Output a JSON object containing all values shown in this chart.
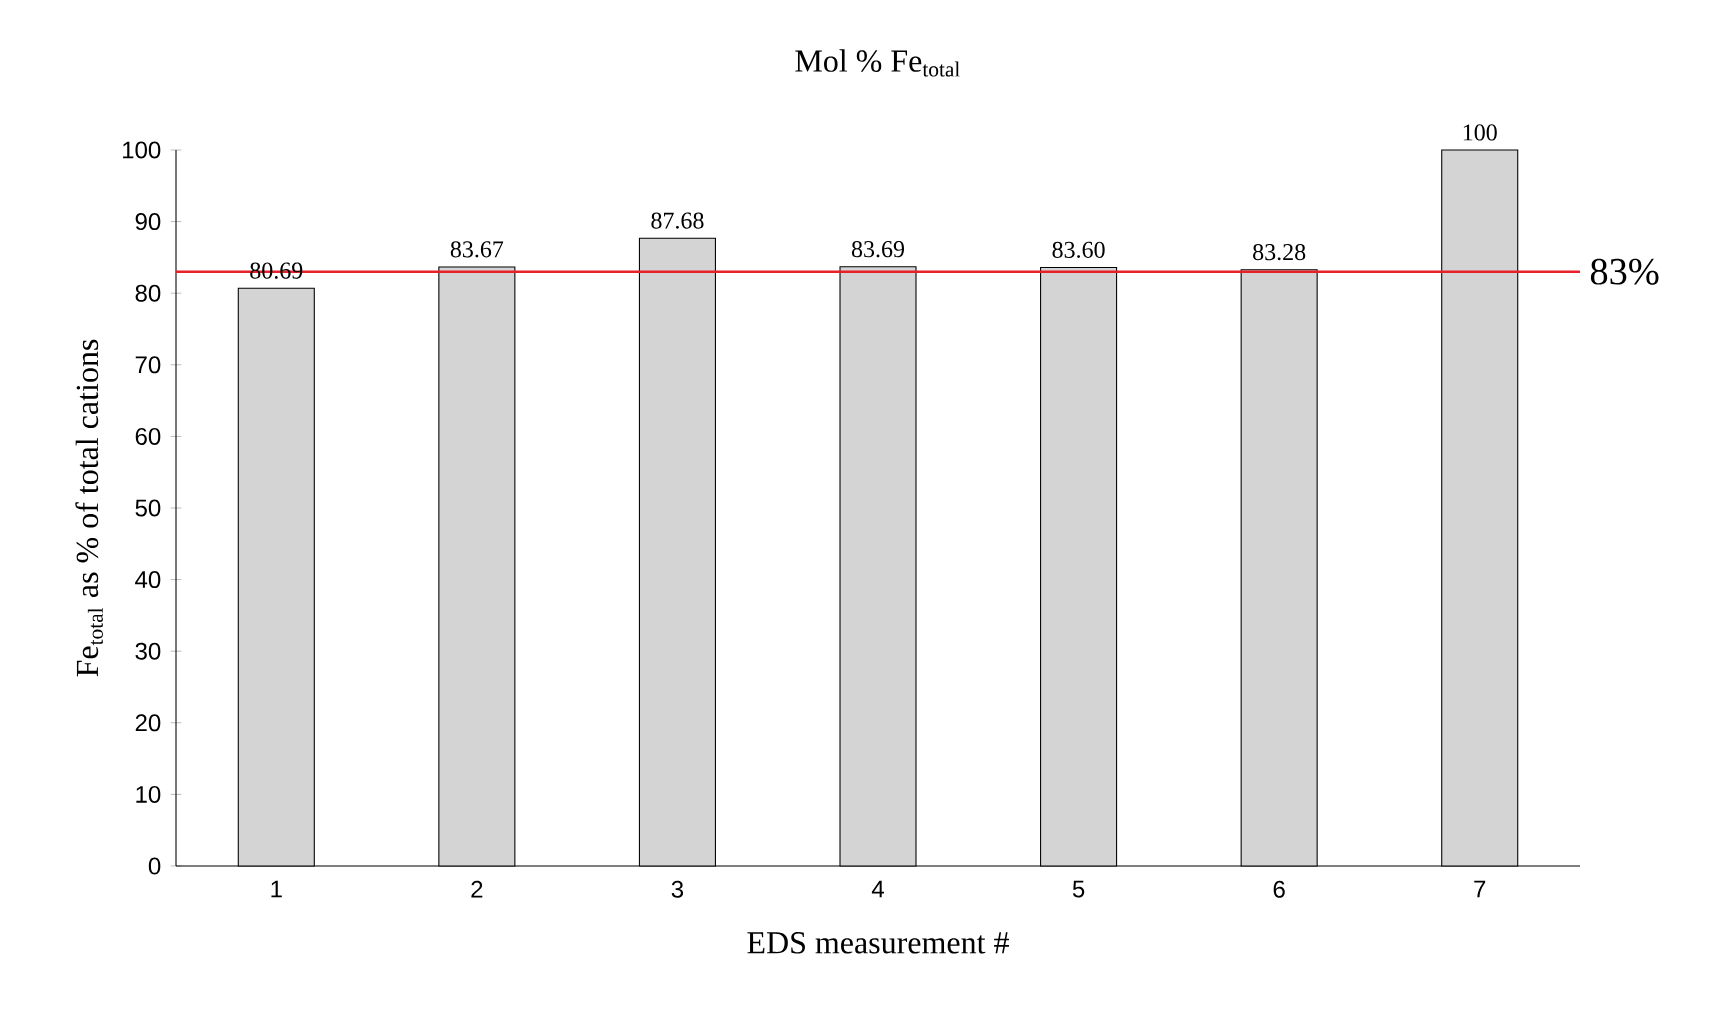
{
  "chart_data": {
    "type": "bar",
    "title": "Mol % Fe$_{total}$",
    "xlabel": "EDS measurement #",
    "ylabel": "Fe$_{total}$ as % of total cations",
    "categories": [
      "1",
      "2",
      "3",
      "4",
      "5",
      "6",
      "7"
    ],
    "values": [
      80.69,
      83.67,
      87.68,
      83.69,
      83.6,
      83.28,
      100
    ],
    "value_labels": [
      "80.69",
      "83.67",
      "87.68",
      "83.69",
      "83.60",
      "83.28",
      "100"
    ],
    "color": "#d4d4d4",
    "ylim": [
      0,
      100
    ],
    "yticks": [
      0,
      10,
      20,
      30,
      40,
      50,
      60,
      70,
      80,
      90,
      100
    ],
    "grid": false,
    "ref_lines": [
      {
        "axis": "y",
        "value": 83,
        "label": "83%",
        "color": "#e8202a"
      }
    ]
  }
}
